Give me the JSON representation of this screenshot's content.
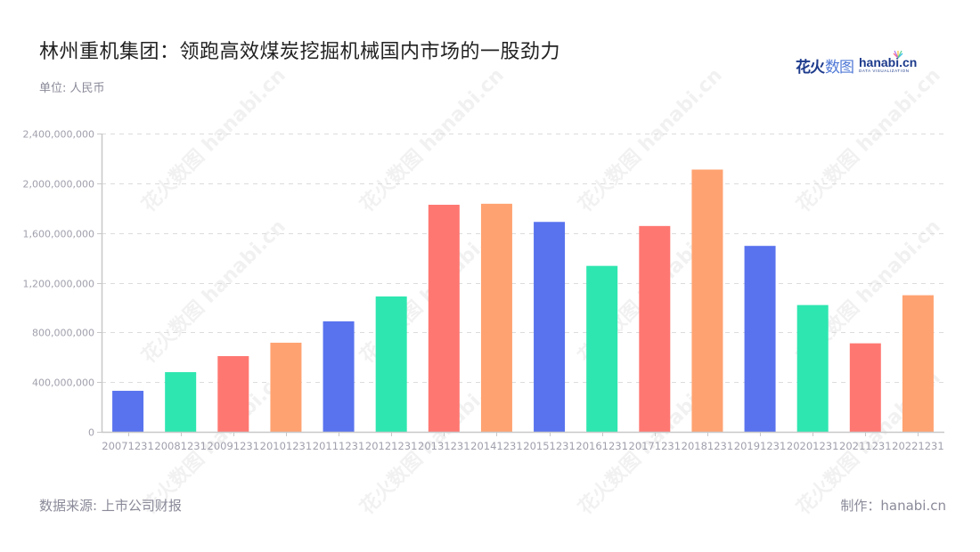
{
  "header": {
    "title": "林州重机集团：领跑高效煤炭挖掘机械国内市场的一股劲力",
    "unit": "单位: 人民币"
  },
  "logo": {
    "cn_bold": "花火",
    "cn_light": "数图",
    "en": "hanabi.cn",
    "tagline": "DATA VISUALIZATION"
  },
  "footer": {
    "source": "数据来源: 上市公司财报",
    "credit": "制作：hanabi.cn"
  },
  "watermark": "花火数图 hanabi.cn",
  "colors": [
    "#5973ee",
    "#2ee6b0",
    "#ff7771",
    "#ffa271"
  ],
  "chart_data": {
    "type": "bar",
    "title": "林州重机集团：领跑高效煤炭挖掘机械国内市场的一股劲力",
    "subtitle": "单位: 人民币",
    "xlabel": "",
    "ylabel": "",
    "ylim": [
      0,
      2400000000
    ],
    "yticks": [
      0,
      400000000,
      800000000,
      1200000000,
      1600000000,
      2000000000,
      2400000000
    ],
    "ytick_labels": [
      "0",
      "400,000,000",
      "800,000,000",
      "1,200,000,000",
      "1,600,000,000",
      "2,000,000,000",
      "2,400,000,000"
    ],
    "grid": true,
    "legend": "none",
    "categories": [
      "20071231",
      "20081231",
      "20091231",
      "20101231",
      "20111231",
      "20121231",
      "20131231",
      "20141231",
      "20151231",
      "20161231",
      "20171231",
      "20181231",
      "20191231",
      "20201231",
      "20211231",
      "20221231"
    ],
    "values": [
      330000000,
      480000000,
      609000000,
      717000000,
      889000000,
      1089000000,
      1827000000,
      1835000000,
      1689000000,
      1335000000,
      1656000000,
      2110000000,
      1496000000,
      1020000000,
      712000000,
      1099000000
    ],
    "source": "数据来源: 上市公司财报"
  }
}
